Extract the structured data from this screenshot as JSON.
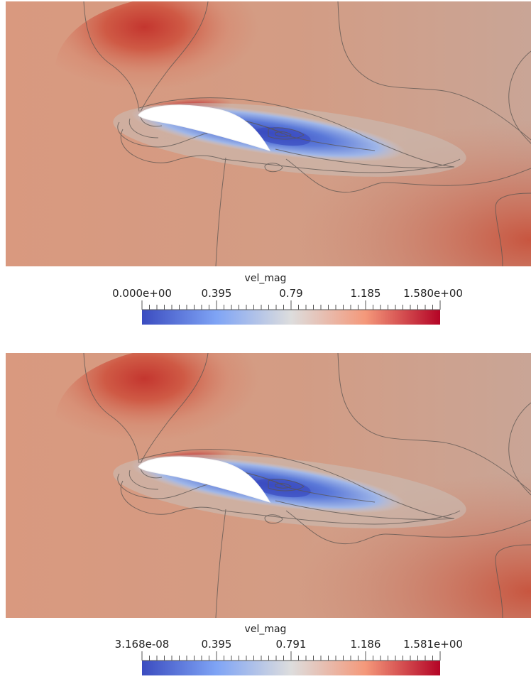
{
  "plots": [
    {
      "colorbar": {
        "title": "vel_mag",
        "tick_labels": [
          "0.000e+00",
          "0.395",
          "0.79",
          "1.185",
          "1.580e+00"
        ]
      }
    },
    {
      "colorbar": {
        "title": "vel_mag",
        "tick_labels": [
          "3.168e-08",
          "0.395",
          "0.791",
          "1.186",
          "1.581e+00"
        ]
      }
    }
  ],
  "colors": {
    "colormap_low": "#3b4cc0",
    "colormap_mid": "#dddddd",
    "colormap_high": "#b40426",
    "field_background": "#d7957c",
    "airfoil": "#ffffff",
    "contour_line": "#5a5450"
  }
}
